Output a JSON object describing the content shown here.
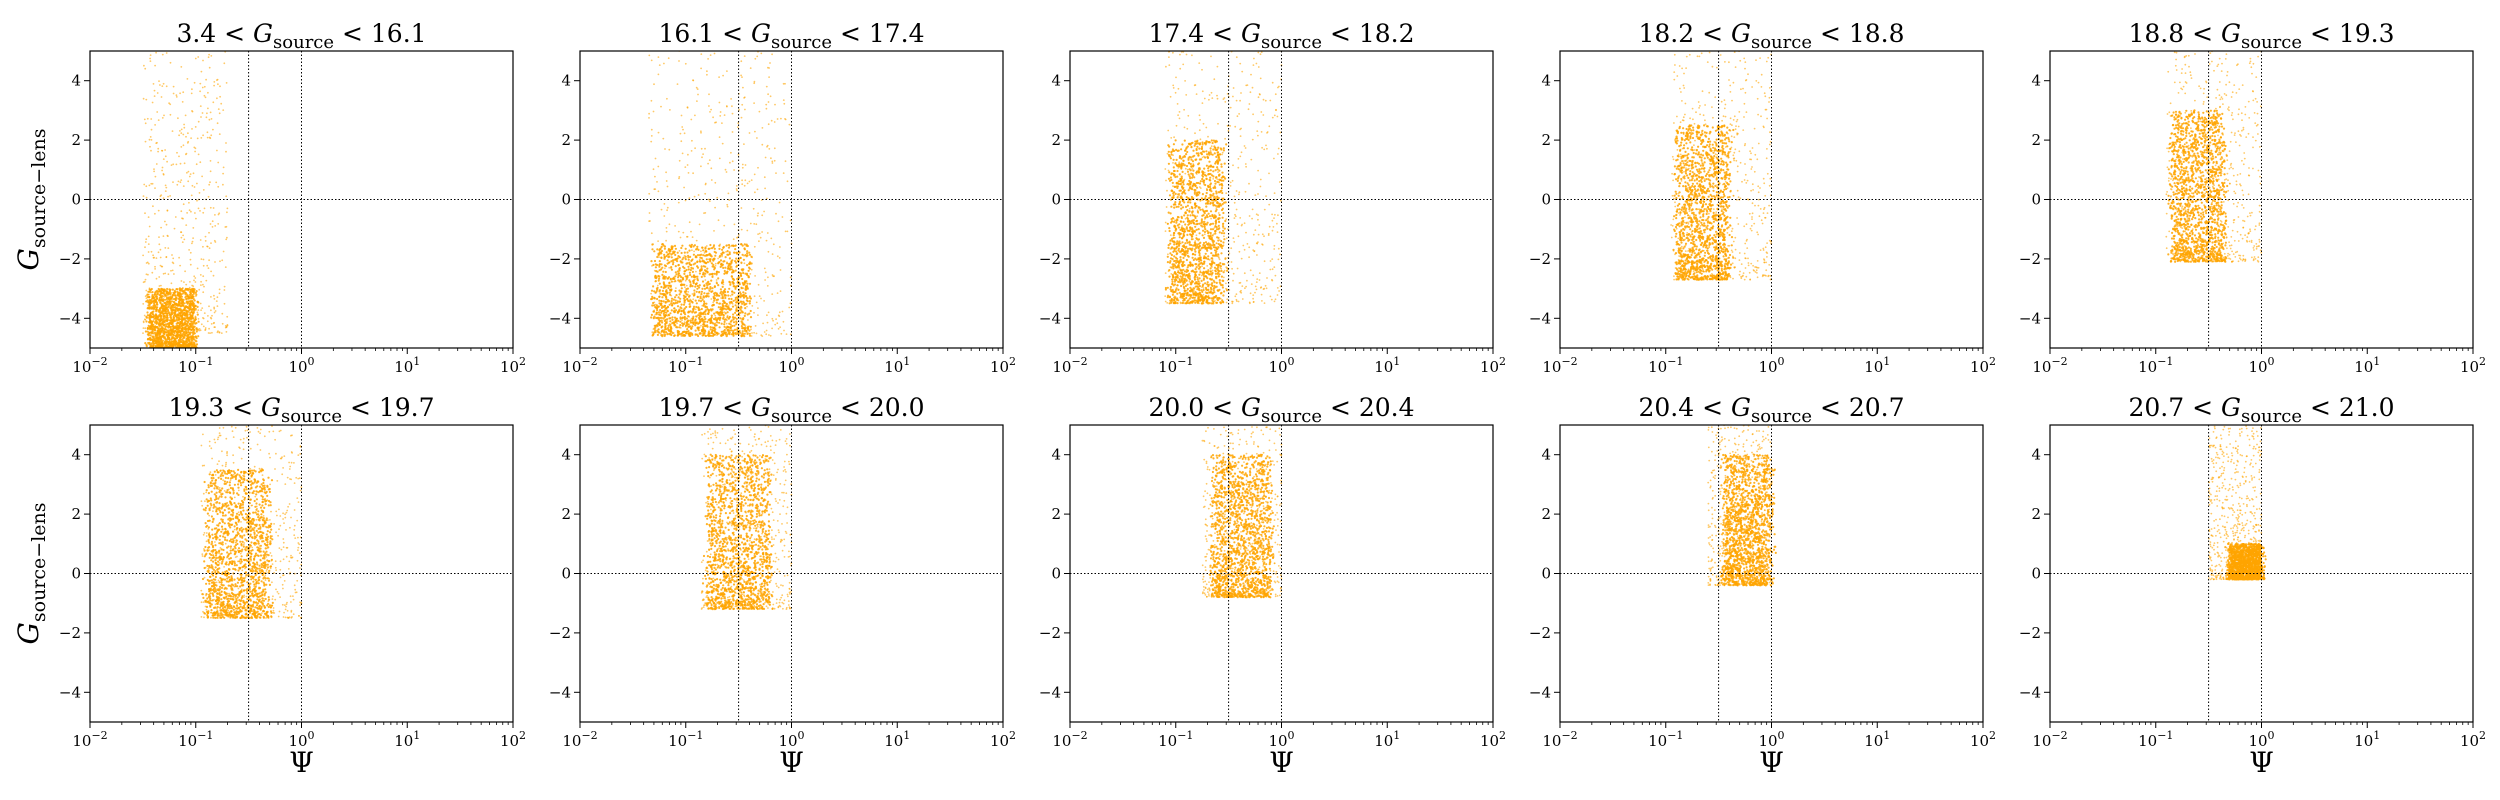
{
  "chart_data": {
    "type": "scatter",
    "layout": "2x5 grid",
    "x_scale": "log",
    "xlim": [
      0.01,
      100
    ],
    "ylim": [
      -5,
      5
    ],
    "x_ticks": [
      0.01,
      0.1,
      1,
      10,
      100
    ],
    "x_tick_labels": [
      {
        "base": "10",
        "exp": "−2"
      },
      {
        "base": "10",
        "exp": "−1"
      },
      {
        "base": "10",
        "exp": "0"
      },
      {
        "base": "10",
        "exp": "1"
      },
      {
        "base": "10",
        "exp": "2"
      }
    ],
    "y_ticks": [
      -4,
      -2,
      0,
      2,
      4
    ],
    "y_tick_labels": [
      "−4",
      "−2",
      "0",
      "2",
      "4"
    ],
    "xlabel": "Ψ",
    "ylabel": {
      "main": "G",
      "sub": "source−lens"
    },
    "title_var": {
      "main": "G",
      "sub": "source"
    },
    "marker_color": "#ffa500",
    "reference_lines": {
      "vertical": [
        0.316,
        1.0
      ],
      "horizontal": [
        0
      ],
      "style": "dotted",
      "color": "#000000"
    },
    "panels": [
      {
        "title_lo": "3.4",
        "title_hi": "16.1",
        "density_core": {
          "x_log": [
            -1.45,
            -1.0
          ],
          "y": [
            -5,
            -3.0
          ]
        },
        "spread": {
          "x_log": [
            -1.5,
            -0.7
          ],
          "y": [
            -4.5,
            5
          ]
        }
      },
      {
        "title_lo": "16.1",
        "title_hi": "17.4",
        "density_core": {
          "x_log": [
            -1.3,
            -0.4
          ],
          "y": [
            -4.6,
            -1.5
          ]
        },
        "spread": {
          "x_log": [
            -1.35,
            0.0
          ],
          "y": [
            -4.6,
            5
          ]
        }
      },
      {
        "title_lo": "17.4",
        "title_hi": "18.2",
        "density_core": {
          "x_log": [
            -1.05,
            -0.55
          ],
          "y": [
            -3.5,
            2.0
          ]
        },
        "spread": {
          "x_log": [
            -1.1,
            0.0
          ],
          "y": [
            -3.5,
            5
          ]
        }
      },
      {
        "title_lo": "18.2",
        "title_hi": "18.8",
        "density_core": {
          "x_log": [
            -0.9,
            -0.4
          ],
          "y": [
            -2.7,
            2.5
          ]
        },
        "spread": {
          "x_log": [
            -0.95,
            0.0
          ],
          "y": [
            -2.7,
            5
          ]
        }
      },
      {
        "title_lo": "18.8",
        "title_hi": "19.3",
        "density_core": {
          "x_log": [
            -0.85,
            -0.35
          ],
          "y": [
            -2.1,
            3.0
          ]
        },
        "spread": {
          "x_log": [
            -0.9,
            0.0
          ],
          "y": [
            -2.1,
            5
          ]
        }
      },
      {
        "title_lo": "19.3",
        "title_hi": "19.7",
        "density_core": {
          "x_log": [
            -0.9,
            -0.3
          ],
          "y": [
            -1.5,
            3.5
          ]
        },
        "spread": {
          "x_log": [
            -0.95,
            0.0
          ],
          "y": [
            -1.5,
            5
          ]
        }
      },
      {
        "title_lo": "19.7",
        "title_hi": "20.0",
        "density_core": {
          "x_log": [
            -0.8,
            -0.2
          ],
          "y": [
            -1.2,
            4.0
          ]
        },
        "spread": {
          "x_log": [
            -0.85,
            0.0
          ],
          "y": [
            -1.2,
            5
          ]
        }
      },
      {
        "title_lo": "20.0",
        "title_hi": "20.4",
        "density_core": {
          "x_log": [
            -0.65,
            -0.1
          ],
          "y": [
            -0.8,
            4.0
          ]
        },
        "spread": {
          "x_log": [
            -0.75,
            0.0
          ],
          "y": [
            -0.8,
            5
          ]
        }
      },
      {
        "title_lo": "20.4",
        "title_hi": "20.7",
        "density_core": {
          "x_log": [
            -0.45,
            0.0
          ],
          "y": [
            -0.4,
            4.0
          ]
        },
        "spread": {
          "x_log": [
            -0.6,
            0.0
          ],
          "y": [
            -0.4,
            5
          ]
        }
      },
      {
        "title_lo": "20.7",
        "title_hi": "21.0",
        "density_core": {
          "x_log": [
            -0.3,
            0.0
          ],
          "y": [
            -0.2,
            1.0
          ]
        },
        "spread": {
          "x_log": [
            -0.5,
            0.0
          ],
          "y": [
            -0.2,
            5
          ]
        }
      }
    ]
  }
}
